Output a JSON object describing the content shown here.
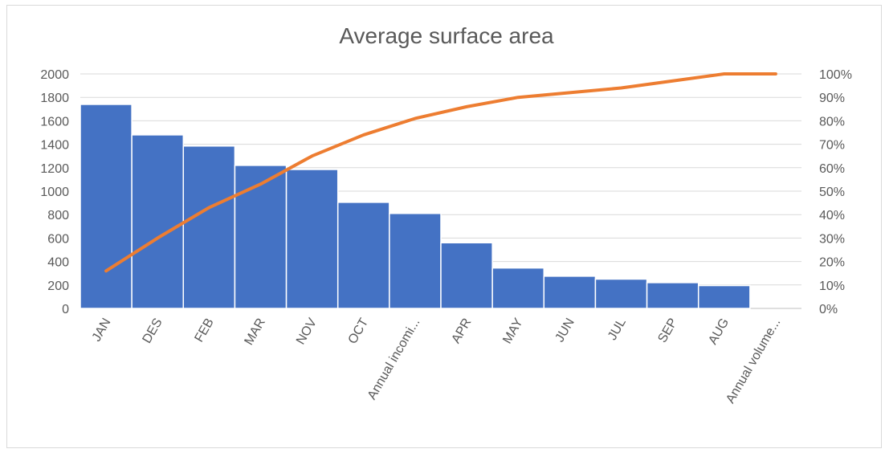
{
  "chart_data": {
    "type": "bar",
    "title": "Average surface area",
    "categories": [
      "JAN",
      "DES",
      "FEB",
      "MAR",
      "NOV",
      "OCT",
      "Annual incomi...",
      "APR",
      "MAY",
      "JUN",
      "JUL",
      "SEP",
      "AUG",
      "Annual volume..."
    ],
    "series": [
      {
        "kind": "bar",
        "values": [
          1740,
          1480,
          1385,
          1220,
          1185,
          905,
          810,
          560,
          345,
          275,
          250,
          220,
          195,
          0
        ]
      },
      {
        "kind": "line",
        "axis": "right",
        "values": [
          0.16,
          0.3,
          0.43,
          0.53,
          0.65,
          0.74,
          0.81,
          0.86,
          0.9,
          0.92,
          0.94,
          0.97,
          1.0,
          1.0
        ]
      }
    ],
    "ylim": [
      0,
      2000
    ],
    "y_ticks": [
      "0",
      "200",
      "400",
      "600",
      "800",
      "1000",
      "1200",
      "1400",
      "1600",
      "1800",
      "2000"
    ],
    "y2lim": [
      0,
      1
    ],
    "y2_ticks": [
      "0%",
      "10%",
      "20%",
      "30%",
      "40%",
      "50%",
      "60%",
      "70%",
      "80%",
      "90%",
      "100%"
    ],
    "grid": true,
    "colors": {
      "bar": "#4472c4",
      "line": "#ed7d31"
    }
  }
}
